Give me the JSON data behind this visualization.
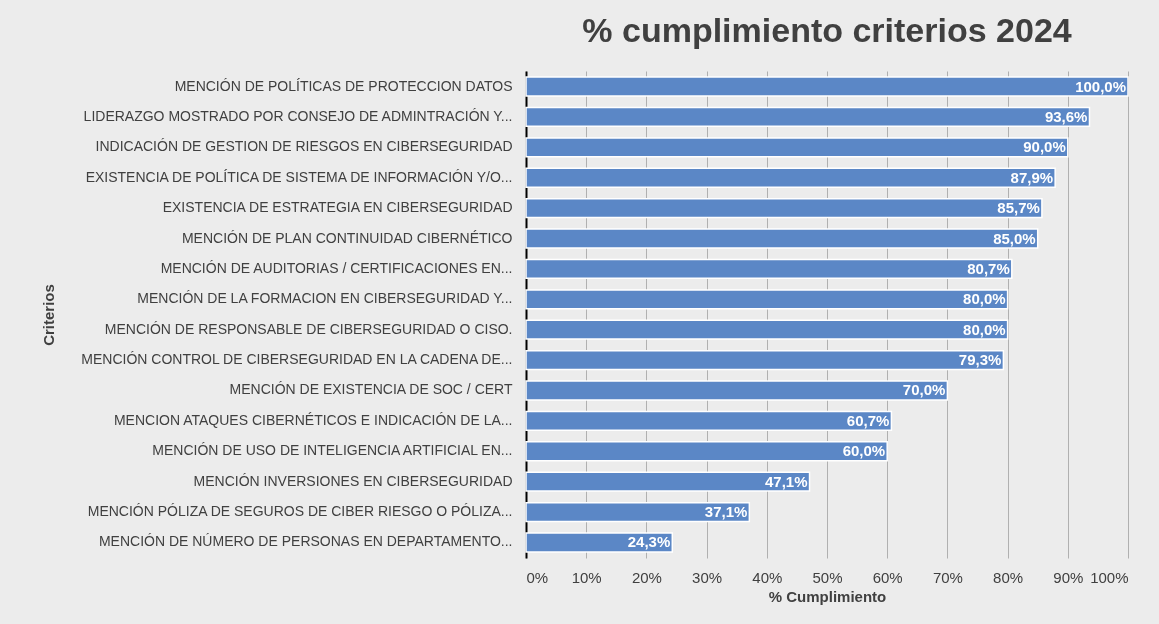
{
  "chart_data": {
    "type": "bar",
    "orientation": "horizontal",
    "title": "% cumplimiento criterios 2024",
    "xlabel": "% Cumplimiento",
    "ylabel": "Criterios",
    "categories": [
      "MENCIÓN DE POLÍTICAS DE  PROTECCION DATOS",
      "LIDERAZGO MOSTRADO POR CONSEJO DE ADMINTRACIÓN Y...",
      "INDICACIÓN DE GESTION DE RIESGOS EN  CIBERSEGURIDAD",
      "EXISTENCIA DE POLÍTICA DE SISTEMA DE INFORMACIÓN Y/O...",
      "EXISTENCIA DE ESTRATEGIA EN CIBERSEGURIDAD",
      "MENCIÓN DE PLAN CONTINUIDAD CIBERNÉTICO",
      "MENCIÓN DE AUDITORIAS / CERTIFICACIONES EN...",
      "MENCIÓN DE LA FORMACION EN  CIBERSEGURIDAD Y...",
      "MENCIÓN DE RESPONSABLE DE CIBERSEGURIDAD O CISO.",
      "MENCIÓN CONTROL DE CIBERSEGURIDAD EN LA CADENA DE...",
      "MENCIÓN DE EXISTENCIA DE SOC / CERT",
      "MENCION ATAQUES CIBERNÉTICOS E INDICACIÓN DE LA...",
      "MENCIÓN DE USO DE INTELIGENCIA ARTIFICIAL EN...",
      "MENCIÓN INVERSIONES EN CIBERSEGURIDAD",
      "MENCIÓN PÓLIZA DE SEGUROS DE CIBER RIESGO O PÓLIZA...",
      "MENCIÓN DE NÚMERO DE PERSONAS EN DEPARTAMENTO..."
    ],
    "values": [
      100.0,
      93.6,
      90.0,
      87.9,
      85.7,
      85.0,
      80.7,
      80.0,
      80.0,
      79.3,
      70.0,
      60.7,
      60.0,
      47.1,
      37.1,
      24.3
    ],
    "value_labels": [
      "100,0%",
      "93,6%",
      "90,0%",
      "87,9%",
      "85,7%",
      "85,0%",
      "80,7%",
      "80,0%",
      "80,0%",
      "79,3%",
      "70,0%",
      "60,7%",
      "60,0%",
      "47,1%",
      "37,1%",
      "24,3%"
    ],
    "color": "#5b87c6",
    "xlim": [
      0,
      100
    ],
    "xticks": [
      {
        "value": 0,
        "label": "0%"
      },
      {
        "value": 10,
        "label": "10%"
      },
      {
        "value": 20,
        "label": "20%"
      },
      {
        "value": 30,
        "label": "30%"
      },
      {
        "value": 40,
        "label": "40%"
      },
      {
        "value": 50,
        "label": "50%"
      },
      {
        "value": 60,
        "label": "60%"
      },
      {
        "value": 70,
        "label": "70%"
      },
      {
        "value": 80,
        "label": "80%"
      },
      {
        "value": 90,
        "label": "90%"
      },
      {
        "value": 100,
        "label": "100%"
      }
    ],
    "grid": "x"
  }
}
